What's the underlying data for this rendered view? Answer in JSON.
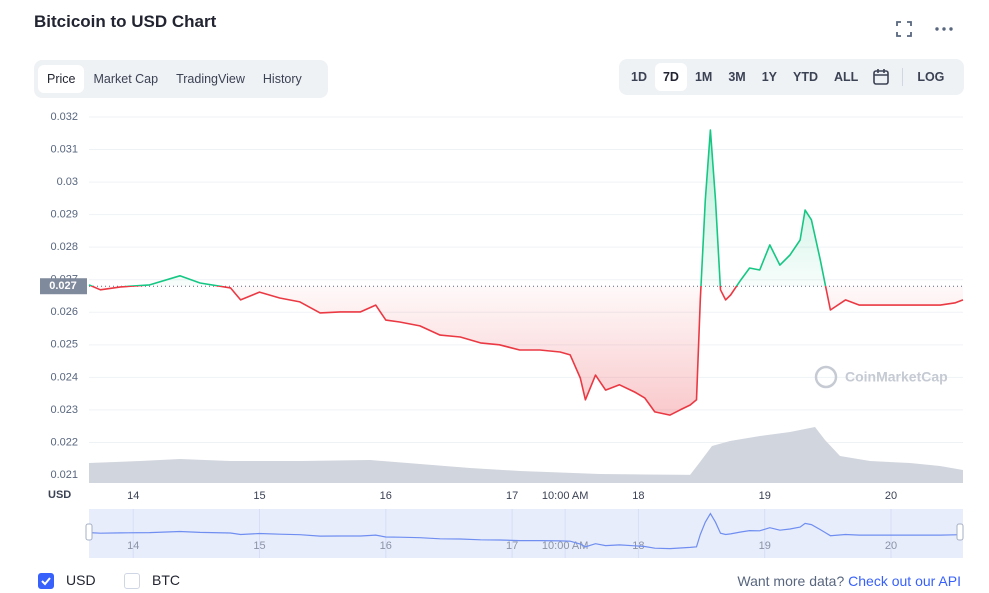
{
  "title": "Bitcicoin to USD Chart",
  "tabs": [
    "Price",
    "Market Cap",
    "TradingView",
    "History"
  ],
  "ranges": [
    "1D",
    "7D",
    "1M",
    "3M",
    "1Y",
    "YTD",
    "ALL"
  ],
  "log_label": "LOG",
  "watermark": "CoinMarketCap",
  "currencies": [
    "USD",
    "BTC"
  ],
  "footer": {
    "prompt": "Want more data?",
    "link": "Check out our API"
  },
  "chart_data": {
    "type": "line",
    "unit_label": "USD",
    "x": [
      13.65,
      13.74,
      13.9,
      14.13,
      14.37,
      14.53,
      14.77,
      14.85,
      15.0,
      15.16,
      15.32,
      15.48,
      15.64,
      15.8,
      15.92,
      16.0,
      16.11,
      16.27,
      16.43,
      16.59,
      16.75,
      16.9,
      17.06,
      17.22,
      17.38,
      17.46,
      17.54,
      17.58,
      17.66,
      17.74,
      17.85,
      17.97,
      18.05,
      18.13,
      18.25,
      18.33,
      18.41,
      18.46,
      18.49,
      18.53,
      18.57,
      18.61,
      18.65,
      18.69,
      18.73,
      18.81,
      18.88,
      18.96,
      19.04,
      19.12,
      19.2,
      19.28,
      19.32,
      19.37,
      19.44,
      19.48,
      19.52,
      19.64,
      19.75,
      19.91,
      20.07,
      20.23,
      20.39,
      20.51,
      20.57
    ],
    "values": [
      0.02684,
      0.02669,
      0.02678,
      0.02684,
      0.02712,
      0.0269,
      0.02675,
      0.02638,
      0.02662,
      0.02644,
      0.02632,
      0.02598,
      0.02601,
      0.02601,
      0.02622,
      0.02576,
      0.0257,
      0.02558,
      0.0253,
      0.02524,
      0.02506,
      0.025,
      0.02484,
      0.02484,
      0.02478,
      0.02469,
      0.02398,
      0.02331,
      0.02407,
      0.02361,
      0.02377,
      0.02355,
      0.02337,
      0.02294,
      0.02284,
      0.023,
      0.02315,
      0.02331,
      0.02638,
      0.02945,
      0.0316,
      0.02945,
      0.02669,
      0.02638,
      0.02653,
      0.02699,
      0.02736,
      0.0273,
      0.02807,
      0.02745,
      0.02776,
      0.02822,
      0.02914,
      0.02884,
      0.02761,
      0.02684,
      0.02607,
      0.02638,
      0.02622,
      0.02622,
      0.02622,
      0.02622,
      0.02622,
      0.02629,
      0.02638
    ],
    "baseline": {
      "value": 0.0268,
      "label": "0.027"
    },
    "colors": {
      "above": "#16c784",
      "below": "#ea3943",
      "navigator": "#6f8ef0"
    },
    "xlim": [
      13.65,
      20.57
    ],
    "ylim": [
      0.021,
      0.032
    ],
    "xticks": [
      14,
      15,
      16,
      17,
      {
        "value": 17.42,
        "label": "10:00 AM"
      },
      18,
      19,
      20
    ],
    "yticks": [
      0.021,
      0.022,
      0.023,
      0.024,
      0.025,
      0.026,
      0.027,
      0.028,
      0.029,
      0.03,
      0.031,
      0.032
    ],
    "grid": true
  }
}
